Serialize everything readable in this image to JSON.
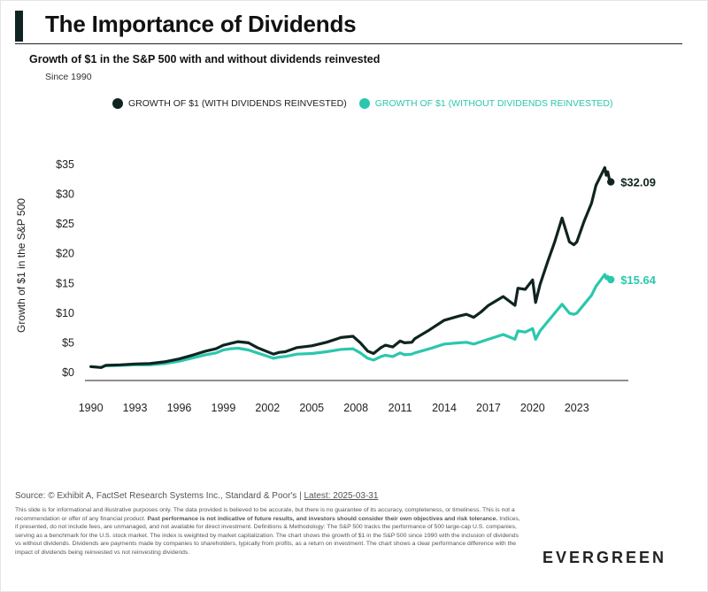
{
  "title": "The Importance of Dividends",
  "subtitle": "Growth of $1 in the S&P 500 with and without dividends reinvested",
  "since": "Since 1990",
  "legend": {
    "with_label": "GROWTH OF $1 (WITH DIVIDENDS REINVESTED)",
    "without_label": "GROWTH OF $1 (WITHOUT DIVIDENDS REINVESTED)"
  },
  "ylabel": "Growth of $1 in the S&P 500",
  "source": {
    "prefix": "Source: © Exhibit A, FactSet Research Systems Inc., Standard & Poor's | ",
    "latest": "Latest: 2025-03-31"
  },
  "disclaimer": {
    "part1": "This slide is for informational and illustrative purposes only. The data provided is believed to be accurate, but there is no guarantee of its accuracy, completeness, or timeliness. This is not a recommendation or offer of any financial product. ",
    "bold": "Past performance is not indicative of future results, and investors should consider their own objectives and risk tolerance.",
    "part2": " Indices, if presented, do not include fees, are unmanaged, and not available for direct investment. Definitions & Methodology: The S&P 500 tracks the performance of 500 large-cap U.S. companies, serving as a benchmark for the U.S. stock market. The index is weighted by market capitalization. The chart shows the growth of $1 in the S&P 500 since 1990 with the inclusion of dividends vs without dividends. Dividends are payments made by companies to shareholders, typically from profits, as a return on investment. The chart shows a clear performance difference with the impact of dividends being reinvested vs not reinvesting dividends."
  },
  "logo": "EVERGREEN",
  "colors": {
    "with": "#0f2420",
    "without": "#2bc7ad",
    "axis": "#222222"
  },
  "chart_data": {
    "type": "line",
    "xlabel": "",
    "ylabel": "Growth of $1 in the S&P 500",
    "xlim": [
      1989.6,
      2026.5
    ],
    "ylim": [
      0,
      35
    ],
    "xticks": [
      1990,
      1993,
      1996,
      1999,
      2002,
      2005,
      2008,
      2011,
      2014,
      2017,
      2020,
      2023
    ],
    "xtick_labels": [
      "1990",
      "1993",
      "1996",
      "1999",
      "2002",
      "2005",
      "2008",
      "2011",
      "2014",
      "2017",
      "2020",
      "2023"
    ],
    "yticks": [
      0,
      5,
      10,
      15,
      20,
      25,
      30,
      35
    ],
    "ytick_labels": [
      "$0",
      "$5",
      "$10",
      "$15",
      "$20",
      "$25",
      "$30",
      "$35"
    ],
    "series": [
      {
        "name": "GROWTH OF $1 (WITH DIVIDENDS REINVESTED)",
        "end_label": "$32.09",
        "end_value": 32.09,
        "x": [
          1990,
          1990.7,
          1991,
          1992,
          1993,
          1994,
          1995,
          1996,
          1997,
          1997.8,
          1998.5,
          1999,
          1999.5,
          2000,
          2000.7,
          2001.3,
          2001.8,
          2002.4,
          2002.8,
          2003.2,
          2004,
          2005,
          2006,
          2007,
          2007.8,
          2008.3,
          2008.8,
          2009.2,
          2009.7,
          2010,
          2010.5,
          2011,
          2011.3,
          2011.8,
          2012,
          2013,
          2014,
          2015,
          2015.5,
          2016,
          2016.5,
          2017,
          2018,
          2018.8,
          2019,
          2019.5,
          2020,
          2020.2,
          2020.5,
          2021,
          2021.5,
          2022,
          2022.5,
          2022.8,
          2023,
          2023.5,
          2024,
          2024.3,
          2024.6,
          2024.9,
          2025.0,
          2025.1,
          2025.25
        ],
        "values": [
          1.0,
          0.85,
          1.2,
          1.3,
          1.45,
          1.5,
          1.8,
          2.3,
          3.0,
          3.6,
          4.0,
          4.6,
          4.9,
          5.2,
          5.0,
          4.2,
          3.7,
          3.1,
          3.4,
          3.5,
          4.2,
          4.5,
          5.1,
          5.9,
          6.1,
          5.0,
          3.6,
          3.2,
          4.2,
          4.6,
          4.3,
          5.3,
          5.0,
          5.1,
          5.7,
          7.2,
          8.8,
          9.5,
          9.8,
          9.3,
          10.2,
          11.3,
          12.8,
          11.3,
          14.2,
          14.0,
          15.6,
          11.8,
          14.8,
          18.5,
          22.0,
          26.0,
          22.0,
          21.5,
          22.0,
          25.5,
          28.5,
          31.5,
          33.0,
          34.5,
          33.2,
          33.8,
          32.09
        ]
      },
      {
        "name": "GROWTH OF $1 (WITHOUT DIVIDENDS REINVESTED)",
        "end_label": "$15.64",
        "end_value": 15.64,
        "x": [
          1990,
          1990.7,
          1991,
          1992,
          1993,
          1994,
          1995,
          1996,
          1997,
          1997.8,
          1998.5,
          1999,
          1999.5,
          2000,
          2000.7,
          2001.3,
          2001.8,
          2002.4,
          2002.8,
          2003.2,
          2004,
          2005,
          2006,
          2007,
          2007.8,
          2008.3,
          2008.8,
          2009.2,
          2009.7,
          2010,
          2010.5,
          2011,
          2011.3,
          2011.8,
          2012,
          2013,
          2014,
          2015,
          2015.5,
          2016,
          2016.5,
          2017,
          2018,
          2018.8,
          2019,
          2019.5,
          2020,
          2020.2,
          2020.5,
          2021,
          2021.5,
          2022,
          2022.5,
          2022.8,
          2023,
          2023.5,
          2024,
          2024.3,
          2024.6,
          2024.9,
          2025.0,
          2025.1,
          2025.25
        ],
        "values": [
          1.0,
          0.85,
          1.15,
          1.2,
          1.3,
          1.3,
          1.5,
          1.9,
          2.5,
          3.0,
          3.3,
          3.8,
          4.0,
          4.1,
          3.8,
          3.3,
          2.9,
          2.4,
          2.6,
          2.7,
          3.1,
          3.2,
          3.5,
          3.9,
          4.0,
          3.3,
          2.4,
          2.1,
          2.7,
          2.9,
          2.7,
          3.3,
          3.0,
          3.1,
          3.3,
          4.0,
          4.8,
          5.0,
          5.1,
          4.8,
          5.2,
          5.6,
          6.4,
          5.6,
          7.0,
          6.8,
          7.4,
          5.6,
          7.0,
          8.5,
          10.0,
          11.5,
          10.0,
          9.8,
          10.0,
          11.5,
          13.0,
          14.5,
          15.5,
          16.5,
          15.8,
          16.2,
          15.64
        ]
      }
    ],
    "grid": false,
    "legend_position": "top"
  }
}
